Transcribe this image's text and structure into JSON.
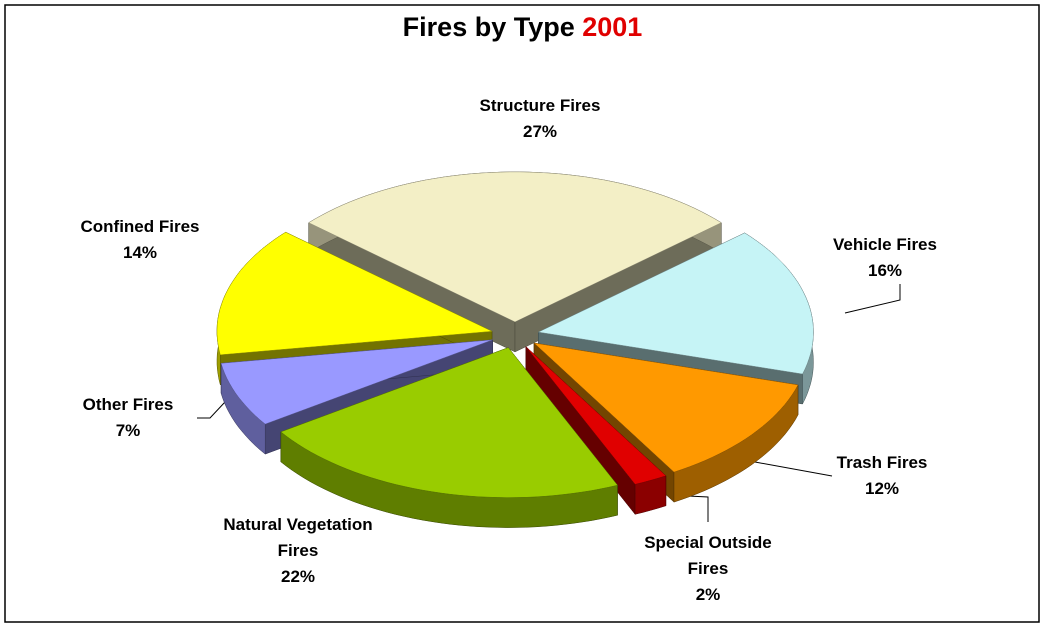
{
  "chart_data": {
    "type": "pie3d",
    "title": "Fires by Type",
    "title_highlight": "2001",
    "categories": [
      "Structure Fires",
      "Vehicle Fires",
      "Trash Fires",
      "Special Outside Fires",
      "Natural Vegetation Fires",
      "Other Fires",
      "Confined Fires"
    ],
    "values": [
      27,
      16,
      12,
      2,
      22,
      7,
      14
    ],
    "value_labels": [
      "27%",
      "16%",
      "12%",
      "2%",
      "22%",
      "7%",
      "14%"
    ],
    "colors": [
      "#f3efc6",
      "#c6f4f6",
      "#ff9900",
      "#e00000",
      "#99cc00",
      "#9999ff",
      "#ffff00"
    ]
  }
}
